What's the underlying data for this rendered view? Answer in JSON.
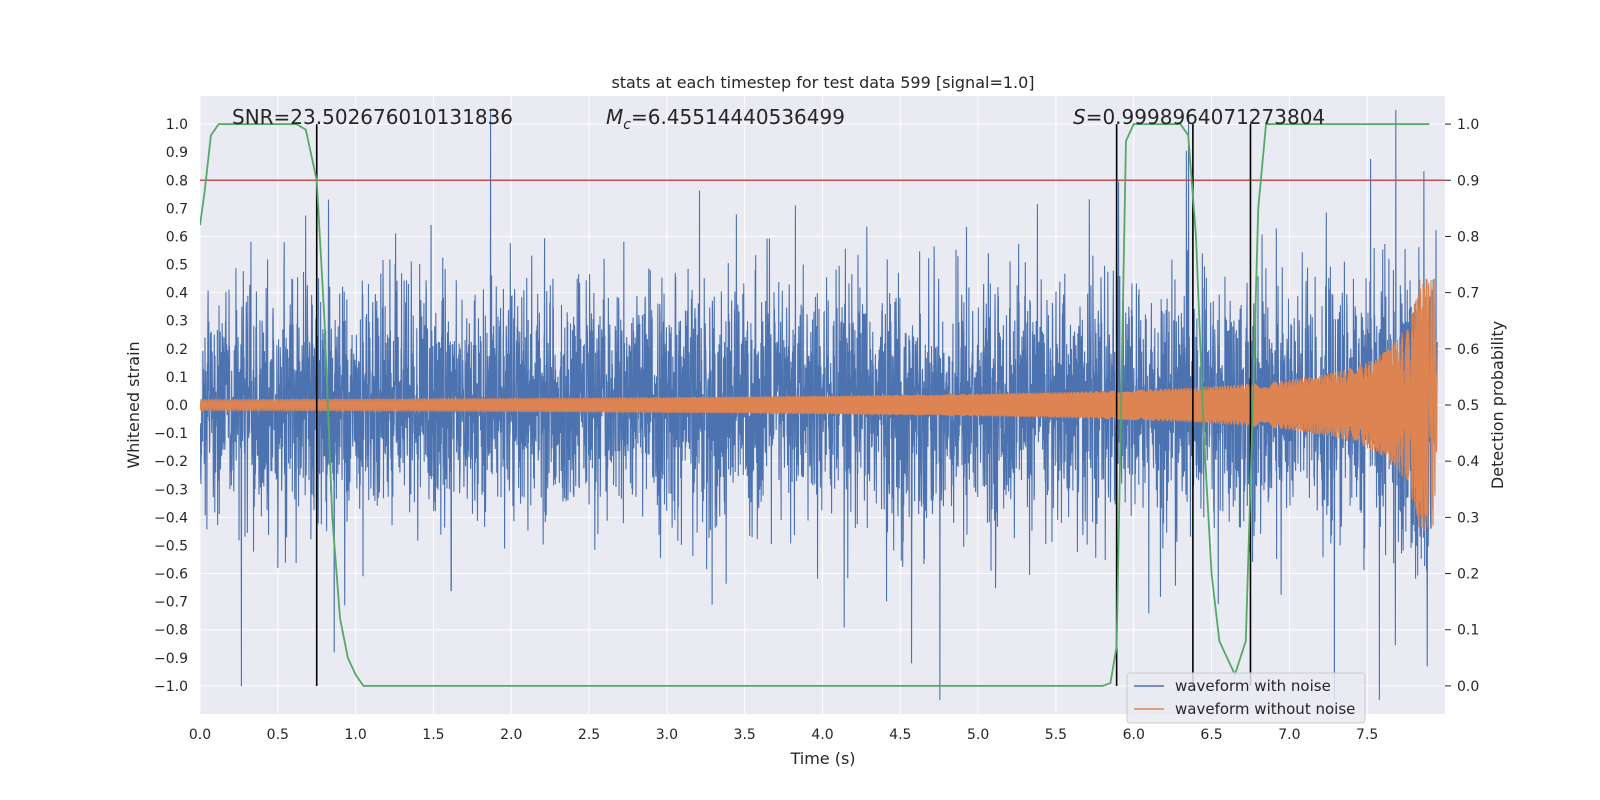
{
  "chart_data": {
    "type": "line",
    "title": "stats at each timestep for test data 599 [signal=1.0]",
    "xlabel": "Time (s)",
    "ylabel": "Whitened strain",
    "y2label": "Detection probability",
    "xlim": [
      0.0,
      8.0
    ],
    "ylim": [
      -1.1,
      1.1
    ],
    "y2lim": [
      -0.05,
      1.05
    ],
    "xticks": [
      0.0,
      0.5,
      1.0,
      1.5,
      2.0,
      2.5,
      3.0,
      3.5,
      4.0,
      4.5,
      5.0,
      5.5,
      6.0,
      6.5,
      7.0,
      7.5
    ],
    "yticks": [
      -1.0,
      -0.9,
      -0.8,
      -0.7,
      -0.6,
      -0.5,
      -0.4,
      -0.3,
      -0.2,
      -0.1,
      0.0,
      0.1,
      0.2,
      0.3,
      0.4,
      0.5,
      0.6,
      0.7,
      0.8,
      0.9,
      1.0
    ],
    "y2ticks": [
      0.0,
      0.1,
      0.2,
      0.3,
      0.4,
      0.5,
      0.6,
      0.7,
      0.8,
      0.9,
      1.0
    ],
    "annotations": {
      "snr": "SNR=23.502676010131836",
      "mc_symbol": "M",
      "mc_sub": "c",
      "mc_value": "=6.45514440536499",
      "s_symbol": "S",
      "s_value": "=0.9998964071273804"
    },
    "threshold": {
      "value": 0.9,
      "axis": "right",
      "color": "#c44e52"
    },
    "vlines": [
      0.75,
      5.89,
      6.38,
      6.75
    ],
    "vline_range": [
      0.0,
      1.0
    ],
    "series": [
      {
        "name": "waveform with noise",
        "color": "#4c72b0",
        "kind": "noise",
        "duration": 7.95,
        "sigma": 0.21
      },
      {
        "name": "waveform without noise",
        "color": "#dd8452",
        "kind": "chirp",
        "duration": 7.95,
        "t_merge": 7.93,
        "a_start": 0.02,
        "a_peak": 0.45
      },
      {
        "name": "detection probability",
        "color": "#55a868",
        "axis": "right",
        "x": [
          0.0,
          0.03,
          0.07,
          0.12,
          0.18,
          0.3,
          0.5,
          0.62,
          0.68,
          0.75,
          0.8,
          0.85,
          0.9,
          0.95,
          1.0,
          1.05,
          1.5,
          2.0,
          3.0,
          3.25,
          4.0,
          5.0,
          5.8,
          5.85,
          5.89,
          5.95,
          6.0,
          6.1,
          6.3,
          6.35,
          6.4,
          6.45,
          6.5,
          6.55,
          6.6,
          6.65,
          6.72,
          6.76,
          6.8,
          6.85,
          7.0,
          7.5,
          7.9
        ],
        "y": [
          0.82,
          0.88,
          0.98,
          1.0,
          1.0,
          1.0,
          1.0,
          1.0,
          0.99,
          0.9,
          0.65,
          0.3,
          0.12,
          0.05,
          0.02,
          0.0,
          0.0,
          0.0,
          0.0,
          0.0,
          0.0,
          0.0,
          0.0,
          0.005,
          0.07,
          0.97,
          1.0,
          1.0,
          1.0,
          0.98,
          0.8,
          0.45,
          0.2,
          0.08,
          0.05,
          0.02,
          0.08,
          0.45,
          0.85,
          1.0,
          1.0,
          1.0,
          1.0
        ]
      }
    ],
    "legend": {
      "placement": "lower-right",
      "entries": [
        "waveform with noise",
        "waveform without noise"
      ]
    }
  }
}
